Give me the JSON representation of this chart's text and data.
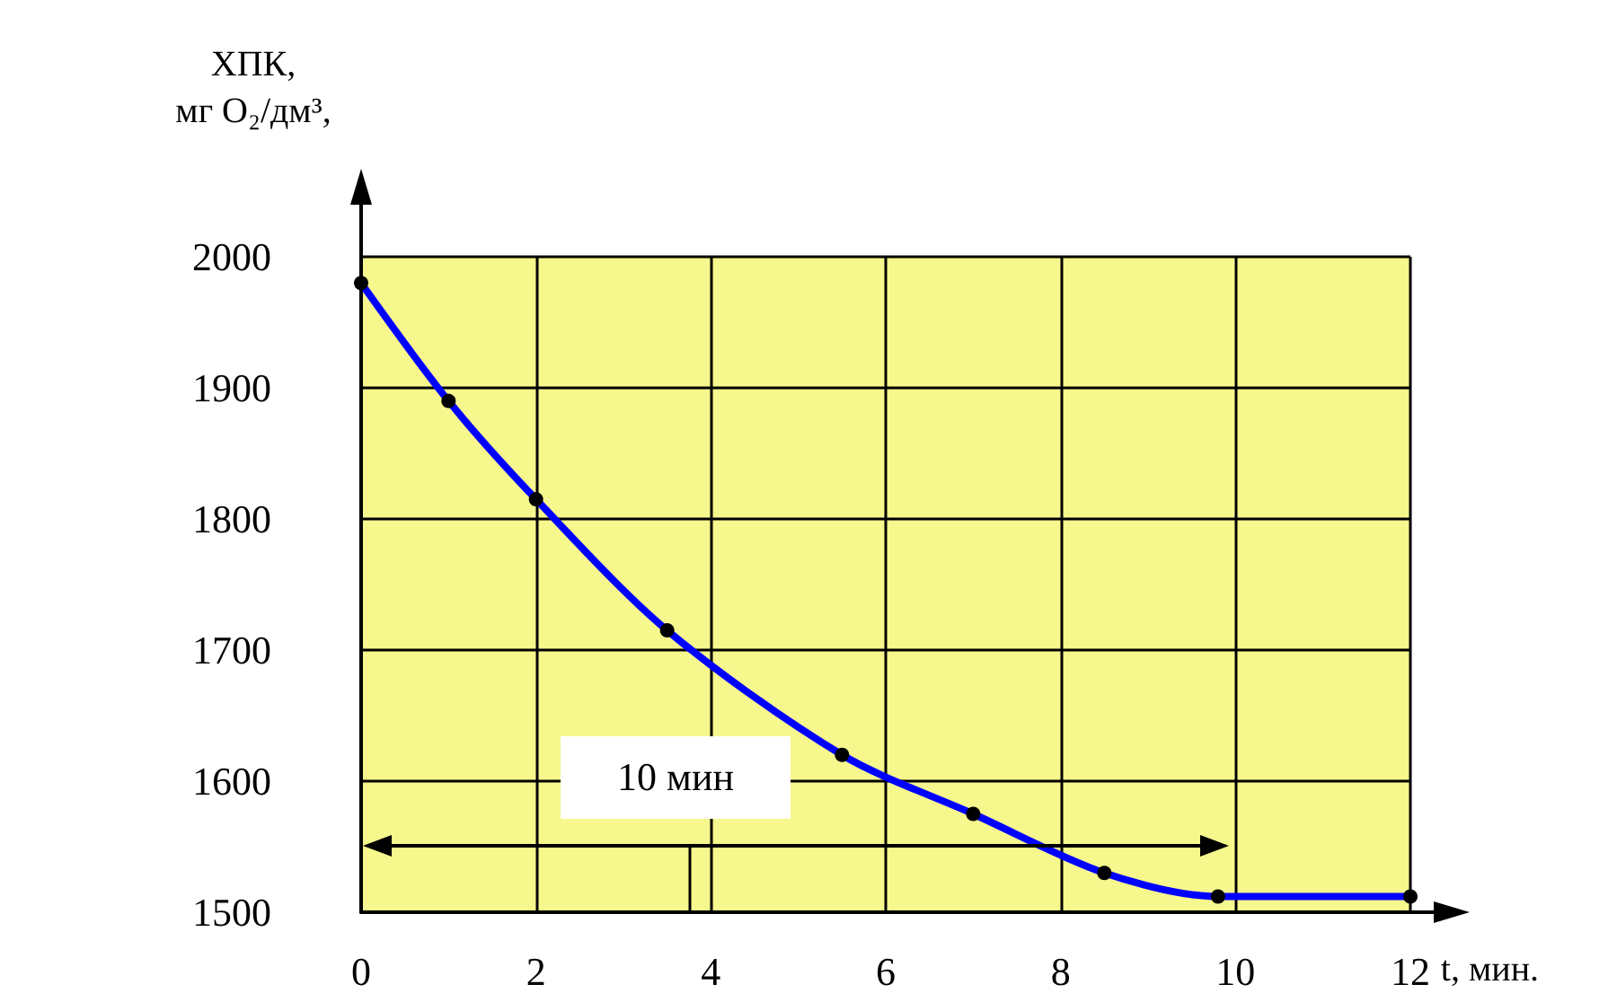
{
  "chart_data": {
    "type": "line",
    "ylabel": "ХПК,\nмг O₂/дм³,",
    "xlabel": "t, мин.",
    "x": [
      0,
      1,
      2,
      3.5,
      5.5,
      7,
      8.5,
      9.8,
      12
    ],
    "series": [
      {
        "color": "#0000ff",
        "values": [
          1980,
          1890,
          1815,
          1715,
          1620,
          1575,
          1530,
          1512,
          1512
        ]
      }
    ],
    "xlim": [
      0,
      12
    ],
    "xticks": [
      0,
      2,
      4,
      6,
      8,
      10,
      12
    ],
    "ylim": [
      1500,
      2000
    ],
    "yticks": [
      1500,
      1600,
      1700,
      1800,
      1900,
      2000
    ],
    "grid": true,
    "marker": "circle",
    "annotations": [
      "10 мин"
    ]
  }
}
